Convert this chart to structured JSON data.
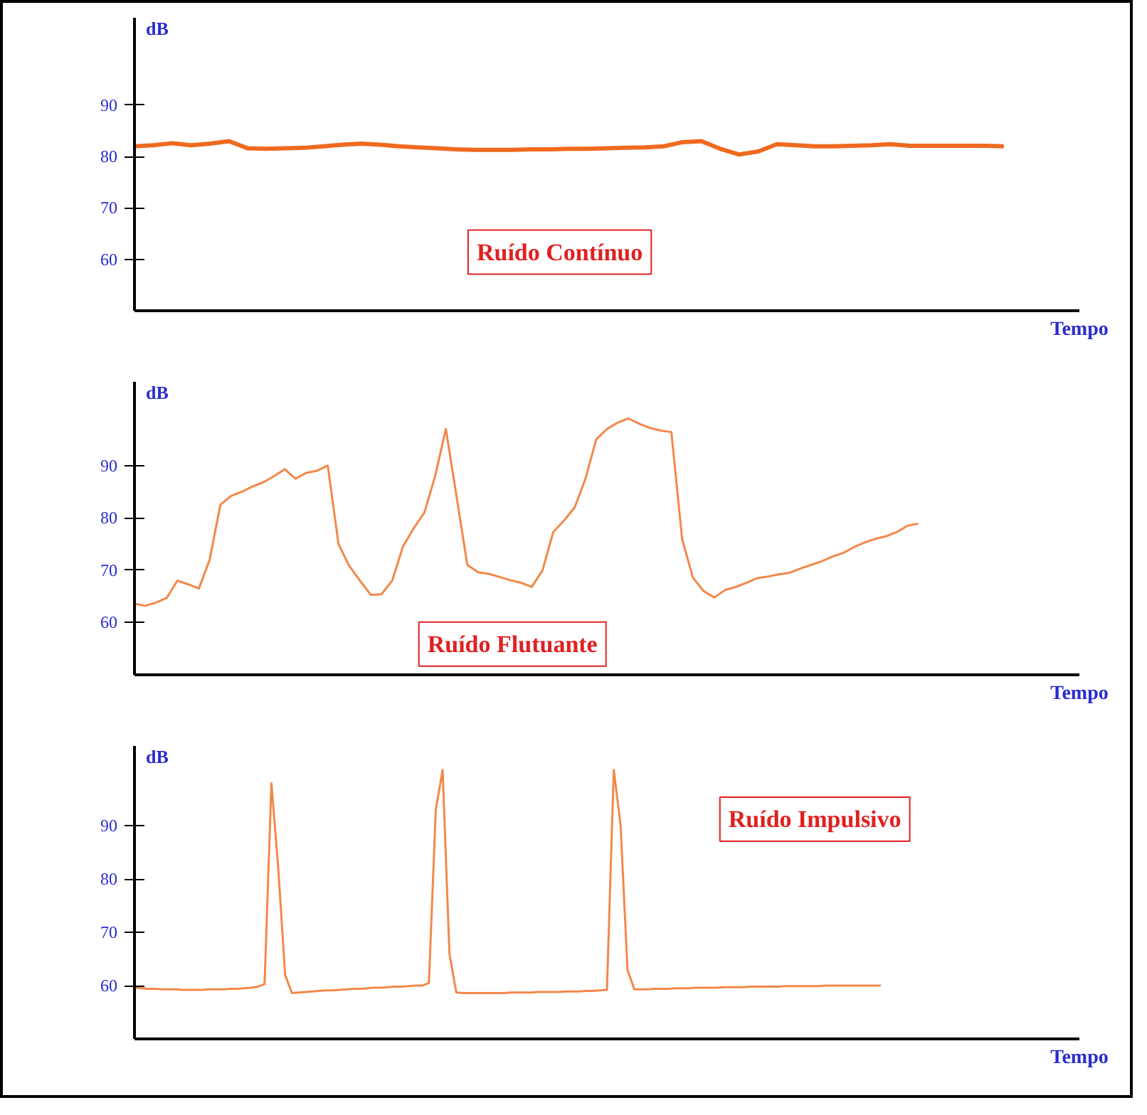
{
  "chart_data": [
    {
      "type": "line",
      "ylabel": "dB",
      "xlabel": "Tempo",
      "annotations": [
        "Ruído Contínuo"
      ],
      "color": "#ef6a1f",
      "ylim": [
        50,
        107
      ],
      "yticks": [
        60,
        70,
        80,
        90
      ],
      "tick_labels": "y",
      "categories": [
        null,
        null,
        null,
        null,
        null,
        null,
        null,
        null,
        null,
        null,
        null,
        null,
        null,
        null,
        null,
        null,
        null,
        null,
        null,
        null,
        null,
        null,
        null,
        null,
        null,
        null,
        null,
        null,
        null,
        null,
        null,
        null,
        null,
        null,
        null,
        null,
        null,
        null,
        null,
        null,
        null,
        null,
        null,
        null,
        null,
        null,
        null,
        null,
        null,
        null,
        null
      ],
      "values": [
        82,
        82.2,
        82.6,
        82.2,
        82.5,
        83,
        81.6,
        81.5,
        81.6,
        81.7,
        82,
        82.3,
        82.5,
        82.3,
        82,
        81.8,
        81.6,
        81.4,
        81.3,
        81.3,
        81.3,
        81.4,
        81.4,
        81.5,
        81.5,
        81.6,
        81.7,
        81.8,
        82,
        82.8,
        83,
        81.5,
        80.4,
        81,
        82.4,
        82.2,
        82,
        82,
        82.1,
        82.2,
        82.4,
        82.1,
        82.1,
        82.1,
        82.1,
        82.1,
        82,
        null,
        null,
        null,
        null
      ]
    },
    {
      "type": "line",
      "ylabel": "dB",
      "xlabel": "Tempo",
      "annotations": [
        "Ruído Flutuante"
      ],
      "color": "#f3884a",
      "ylim": [
        50,
        106
      ],
      "yticks": [
        60,
        70,
        80,
        90
      ],
      "tick_labels": "y",
      "categories": [
        null,
        null,
        null,
        null,
        null,
        null,
        null,
        null,
        null,
        null,
        null,
        null,
        null,
        null,
        null,
        null,
        null,
        null,
        null,
        null,
        null,
        null,
        null,
        null,
        null,
        null,
        null,
        null,
        null,
        null,
        null,
        null,
        null,
        null,
        null,
        null,
        null,
        null,
        null,
        null,
        null,
        null,
        null,
        null,
        null,
        null,
        null,
        null,
        null,
        null,
        null,
        null,
        null,
        null,
        null,
        null,
        null,
        null,
        null,
        null,
        null,
        null,
        null,
        null,
        null,
        null,
        null,
        null,
        null,
        null,
        null,
        null,
        null,
        null,
        null,
        null,
        null,
        null,
        null,
        null,
        null,
        null,
        null,
        null,
        null,
        null,
        null,
        null,
        null
      ],
      "values": [
        63.6,
        63.2,
        63.8,
        64.7,
        68,
        67.3,
        66.5,
        72,
        82.5,
        84.2,
        85,
        86,
        86.8,
        88,
        89.3,
        87.5,
        88.6,
        89,
        90,
        75,
        70.8,
        68,
        65.3,
        65.4,
        68,
        74.5,
        78,
        81,
        88,
        97,
        84,
        71,
        69.6,
        69.3,
        68.7,
        68.1,
        67.6,
        66.8,
        70,
        77.3,
        79.5,
        82,
        87.5,
        95,
        97,
        98.2,
        99,
        98,
        97.2,
        96.7,
        96.4,
        76,
        68.6,
        66,
        64.8,
        66.2,
        66.8,
        67.6,
        68.5,
        68.8,
        69.2,
        69.5,
        70.3,
        71,
        71.7,
        72.6,
        73.3,
        74.4,
        75.3,
        76,
        76.5,
        77.3,
        78.5,
        78.9,
        null,
        null,
        null,
        null,
        null,
        null,
        null,
        null,
        null,
        null,
        null,
        null,
        null,
        null,
        null
      ]
    },
    {
      "type": "line",
      "ylabel": "dB",
      "xlabel": "Tempo",
      "annotations": [
        "Ruído Impulsivo"
      ],
      "color": "#f3884a",
      "ylim": [
        50,
        105
      ],
      "yticks": [
        60,
        70,
        80,
        90
      ],
      "tick_labels": "y",
      "categories": [
        null,
        null,
        null,
        null,
        null,
        null,
        null,
        null,
        null,
        null,
        null,
        null,
        null,
        null,
        null,
        null,
        null,
        null,
        null,
        null,
        null,
        null,
        null,
        null,
        null,
        null,
        null,
        null,
        null,
        null,
        null,
        null,
        null,
        null,
        null,
        null,
        null,
        null,
        null,
        null,
        null,
        null,
        null,
        null,
        null,
        null,
        null,
        null,
        null,
        null,
        null,
        null,
        null,
        null,
        null,
        null,
        null,
        null,
        null,
        null,
        null,
        null,
        null,
        null,
        null,
        null,
        null,
        null,
        null,
        null,
        null,
        null,
        null,
        null,
        null,
        null,
        null,
        null,
        null,
        null,
        null,
        null,
        null,
        null,
        null,
        null,
        null,
        null,
        null,
        null,
        null,
        null,
        null,
        null,
        null,
        null,
        null,
        null,
        null,
        null,
        null,
        null,
        null,
        null,
        null,
        null,
        null,
        null,
        null,
        null,
        null,
        null,
        null,
        null,
        null,
        null,
        null,
        null,
        null,
        null,
        null,
        null,
        null,
        null,
        null,
        null,
        null,
        null,
        null,
        null,
        null,
        null,
        null,
        null,
        null,
        null,
        null,
        null,
        null
      ],
      "values": [
        59.6,
        59.5,
        59.4,
        59.4,
        59.3,
        59.3,
        59.3,
        59.2,
        59.2,
        59.2,
        59.2,
        59.3,
        59.3,
        59.3,
        59.4,
        59.4,
        59.5,
        59.6,
        59.8,
        60.3,
        98,
        82,
        62,
        58.6,
        58.7,
        58.8,
        58.9,
        59,
        59.1,
        59.1,
        59.2,
        59.3,
        59.4,
        59.4,
        59.5,
        59.6,
        59.6,
        59.7,
        59.8,
        59.8,
        59.9,
        60,
        60,
        60.5,
        93,
        100.5,
        66,
        58.7,
        58.6,
        58.6,
        58.6,
        58.6,
        58.6,
        58.6,
        58.6,
        58.7,
        58.7,
        58.7,
        58.7,
        58.8,
        58.8,
        58.8,
        58.8,
        58.9,
        58.9,
        58.9,
        59,
        59,
        59.1,
        59.2,
        100.5,
        90,
        63,
        59.3,
        59.3,
        59.3,
        59.4,
        59.4,
        59.4,
        59.5,
        59.5,
        59.5,
        59.6,
        59.6,
        59.6,
        59.6,
        59.7,
        59.7,
        59.7,
        59.7,
        59.8,
        59.8,
        59.8,
        59.8,
        59.8,
        59.9,
        59.9,
        59.9,
        59.9,
        59.9,
        59.9,
        60,
        60,
        60,
        60,
        60,
        60,
        60,
        60,
        60,
        null,
        null,
        null,
        null,
        null,
        null,
        null,
        null,
        null,
        null,
        null,
        null,
        null,
        null,
        null,
        null,
        null,
        null,
        null,
        null,
        null,
        null,
        null,
        null,
        null,
        null,
        null,
        null,
        null
      ]
    }
  ]
}
